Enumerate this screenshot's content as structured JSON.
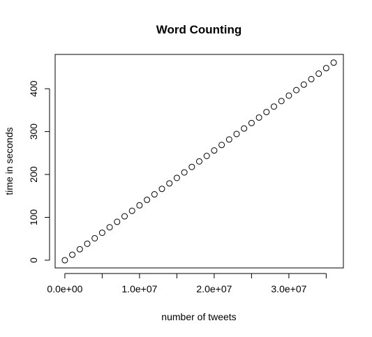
{
  "chart_data": {
    "type": "scatter",
    "title": "Word Counting",
    "xlabel": "number of tweets",
    "ylabel": "time in seconds",
    "xlim": [
      -1300000,
      37300000
    ],
    "ylim": [
      -18,
      480
    ],
    "grid": false,
    "legend": "none",
    "x_ticks": [
      {
        "value": 0,
        "label": "0.0e+00"
      },
      {
        "value": 5000000,
        "label": ""
      },
      {
        "value": 10000000,
        "label": "1.0e+07"
      },
      {
        "value": 15000000,
        "label": ""
      },
      {
        "value": 20000000,
        "label": "2.0e+07"
      },
      {
        "value": 25000000,
        "label": ""
      },
      {
        "value": 30000000,
        "label": "3.0e+07"
      },
      {
        "value": 35000000,
        "label": ""
      }
    ],
    "y_ticks": [
      {
        "value": 0,
        "label": "0"
      },
      {
        "value": 100,
        "label": "100"
      },
      {
        "value": 200,
        "label": "200"
      },
      {
        "value": 300,
        "label": "300"
      },
      {
        "value": 400,
        "label": "400"
      }
    ],
    "series": [
      {
        "x": [
          0,
          1000000,
          2000000,
          3000000,
          4000000,
          5000000,
          6000000,
          7000000,
          8000000,
          9000000,
          10000000,
          11000000,
          12000000,
          13000000,
          14000000,
          15000000,
          16000000,
          17000000,
          18000000,
          19000000,
          20000000,
          21000000,
          22000000,
          23000000,
          24000000,
          25000000,
          26000000,
          27000000,
          28000000,
          29000000,
          30000000,
          31000000,
          32000000,
          33000000,
          34000000,
          35000000,
          36000000
        ],
        "y": [
          0,
          12.8,
          25.6,
          38.4,
          51.2,
          64.0,
          76.8,
          89.6,
          102.4,
          115.2,
          128.0,
          140.8,
          153.6,
          166.4,
          179.2,
          192.0,
          204.8,
          217.6,
          230.4,
          243.2,
          256.0,
          268.8,
          281.6,
          294.4,
          307.2,
          320.0,
          332.8,
          345.6,
          358.4,
          371.2,
          384.0,
          396.8,
          409.6,
          422.4,
          435.2,
          448.0,
          460.8
        ]
      }
    ]
  }
}
